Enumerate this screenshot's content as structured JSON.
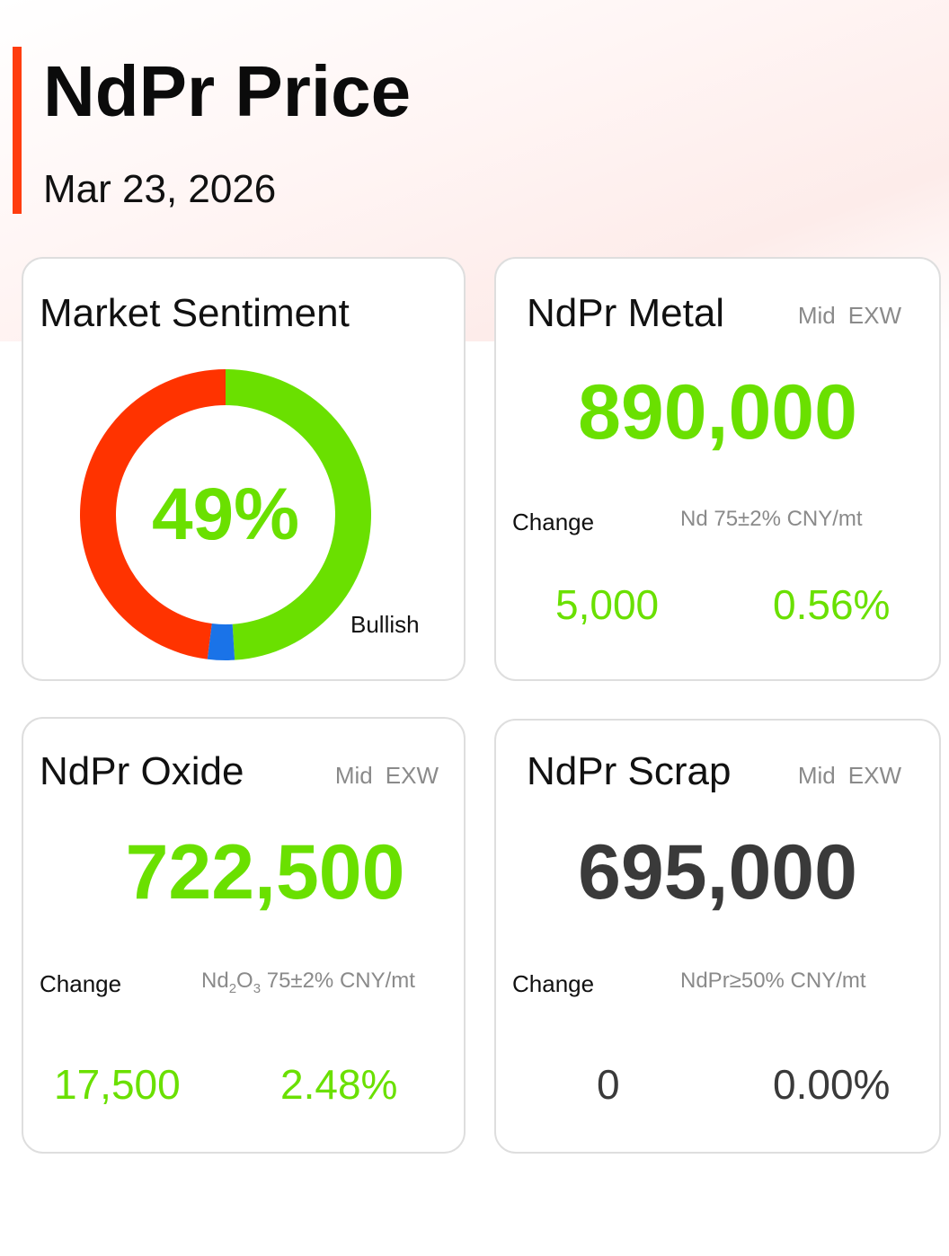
{
  "header": {
    "title": "NdPr Price",
    "date": "Mar 23, 2026"
  },
  "colors": {
    "accent": "#ff3d0f",
    "bullish": "#6ae000",
    "bearish": "#ff3300",
    "neutral": "#1a73e8",
    "flat": "#3a3a3a"
  },
  "sentiment": {
    "title": "Market Sentiment",
    "percent_label": "49%",
    "label": "Bullish",
    "bullish_pct": 49,
    "neutral_pct": 3,
    "bearish_pct": 48
  },
  "metal": {
    "title": "NdPr Metal",
    "tag_mid": "Mid",
    "tag_exw": "EXW",
    "price": "890,000",
    "change_label": "Change",
    "spec": "Nd 75±2% CNY/mt",
    "change_abs": "5,000",
    "change_pct": "0.56%"
  },
  "oxide": {
    "title": "NdPr Oxide",
    "tag_mid": "Mid",
    "tag_exw": "EXW",
    "price": "722,500",
    "change_label": "Change",
    "spec_prefix": "Nd",
    "spec_sub1": "2",
    "spec_mid": "O",
    "spec_sub2": "3",
    "spec_suffix": " 75±2% CNY/mt",
    "change_abs": "17,500",
    "change_pct": "2.48%"
  },
  "scrap": {
    "title": "NdPr Scrap",
    "tag_mid": "Mid",
    "tag_exw": "EXW",
    "price": "695,000",
    "change_label": "Change",
    "spec": "NdPr≥50% CNY/mt",
    "change_abs": "0",
    "change_pct": "0.00%"
  }
}
